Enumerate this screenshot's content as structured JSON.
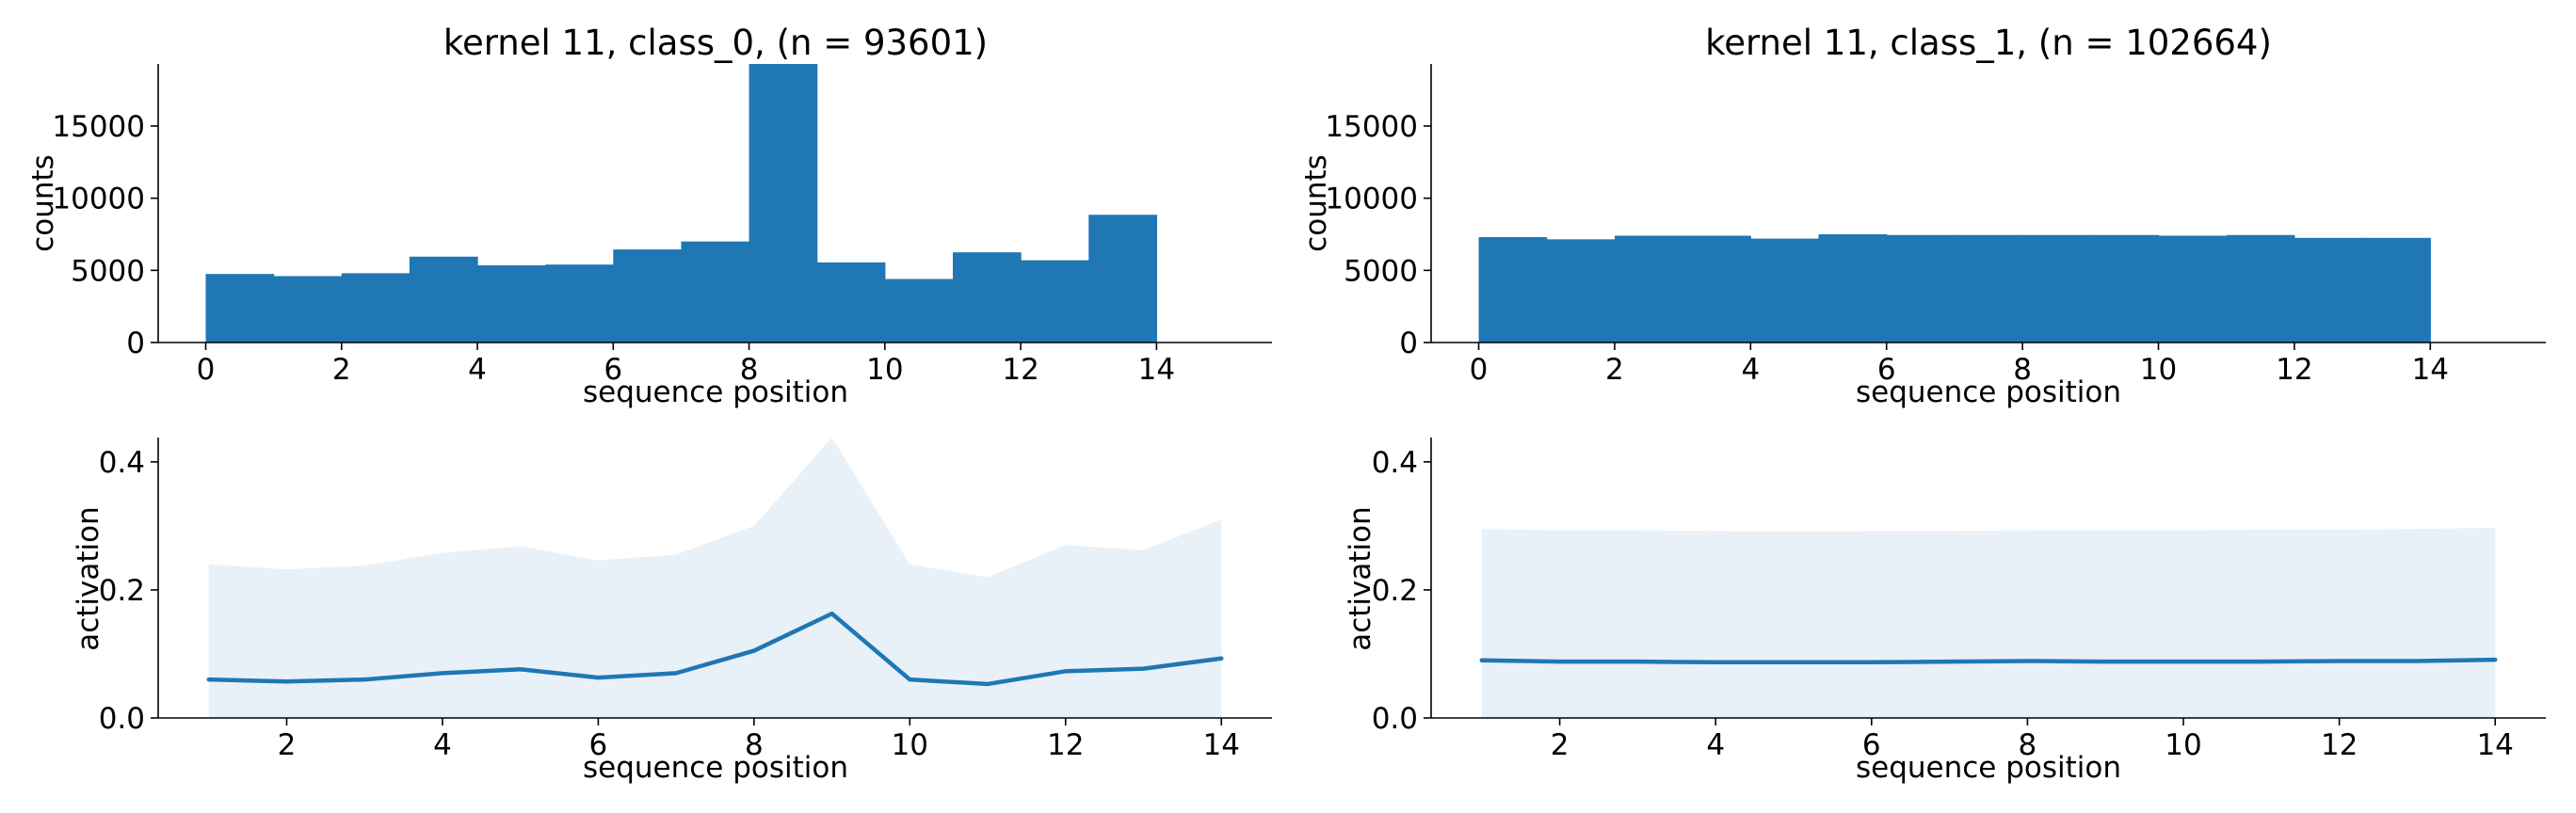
{
  "colors": {
    "bar": "#1f77b4",
    "line": "#1f77b4",
    "band": "#e8f0f8"
  },
  "chart_data": [
    {
      "type": "bar",
      "title": "kernel 11, class_0, (n = 93601)",
      "xlabel": "sequence position",
      "ylabel": "counts",
      "bin_edges": [
        0,
        1,
        2,
        3,
        4,
        5,
        6,
        7,
        8,
        9,
        10,
        11,
        12,
        13,
        14
      ],
      "values": [
        4750,
        4600,
        4800,
        5950,
        5350,
        5400,
        6450,
        7000,
        19300,
        5550,
        4400,
        6250,
        5700,
        8850
      ],
      "xlim": [
        -0.7,
        15.7
      ],
      "ylim": [
        0,
        19300
      ],
      "xticks": [
        0,
        2,
        4,
        6,
        8,
        10,
        12,
        14
      ],
      "yticks": [
        0,
        5000,
        10000,
        15000
      ],
      "grid": false
    },
    {
      "type": "bar",
      "title": "kernel 11, class_1, (n = 102664)",
      "xlabel": "sequence position",
      "ylabel": "counts",
      "bin_edges": [
        0,
        1,
        2,
        3,
        4,
        5,
        6,
        7,
        8,
        9,
        10,
        11,
        12,
        13,
        14
      ],
      "values": [
        7300,
        7150,
        7400,
        7400,
        7200,
        7500,
        7450,
        7450,
        7450,
        7450,
        7400,
        7450,
        7250,
        7250
      ],
      "xlim": [
        -0.7,
        15.7
      ],
      "ylim": [
        0,
        19300
      ],
      "xticks": [
        0,
        2,
        4,
        6,
        8,
        10,
        12,
        14
      ],
      "yticks": [
        0,
        5000,
        10000,
        15000
      ],
      "grid": false
    },
    {
      "type": "line",
      "title": "",
      "xlabel": "sequence position",
      "ylabel": "activation",
      "x": [
        1,
        2,
        3,
        4,
        5,
        6,
        7,
        8,
        9,
        10,
        11,
        12,
        13,
        14
      ],
      "mean": [
        0.06,
        0.057,
        0.06,
        0.07,
        0.076,
        0.063,
        0.07,
        0.105,
        0.163,
        0.06,
        0.053,
        0.073,
        0.077,
        0.093
      ],
      "band_upper": [
        0.24,
        0.232,
        0.238,
        0.258,
        0.268,
        0.246,
        0.255,
        0.3,
        0.438,
        0.24,
        0.22,
        0.27,
        0.262,
        0.31
      ],
      "band_lower": [
        0,
        0,
        0,
        0,
        0,
        0,
        0,
        0,
        0,
        0,
        0,
        0,
        0,
        0
      ],
      "xlim": [
        0.35,
        14.65
      ],
      "ylim": [
        0,
        0.438
      ],
      "xticks": [
        2,
        4,
        6,
        8,
        10,
        12,
        14
      ],
      "yticks": [
        0.0,
        0.2,
        0.4
      ],
      "ytick_labels": [
        "0.0",
        "0.2",
        "0.4"
      ],
      "grid": false
    },
    {
      "type": "line",
      "title": "",
      "xlabel": "sequence position",
      "ylabel": "activation",
      "x": [
        1,
        2,
        3,
        4,
        5,
        6,
        7,
        8,
        9,
        10,
        11,
        12,
        13,
        14
      ],
      "mean": [
        0.09,
        0.088,
        0.088,
        0.087,
        0.087,
        0.087,
        0.088,
        0.089,
        0.088,
        0.088,
        0.088,
        0.089,
        0.089,
        0.091
      ],
      "band_upper": [
        0.295,
        0.293,
        0.293,
        0.292,
        0.291,
        0.292,
        0.292,
        0.293,
        0.293,
        0.293,
        0.294,
        0.294,
        0.295,
        0.297
      ],
      "band_lower": [
        0,
        0,
        0,
        0,
        0,
        0,
        0,
        0,
        0,
        0,
        0,
        0,
        0,
        0
      ],
      "xlim": [
        0.35,
        14.65
      ],
      "ylim": [
        0,
        0.438
      ],
      "xticks": [
        2,
        4,
        6,
        8,
        10,
        12,
        14
      ],
      "yticks": [
        0.0,
        0.2,
        0.4
      ],
      "ytick_labels": [
        "0.0",
        "0.2",
        "0.4"
      ],
      "grid": false
    }
  ]
}
